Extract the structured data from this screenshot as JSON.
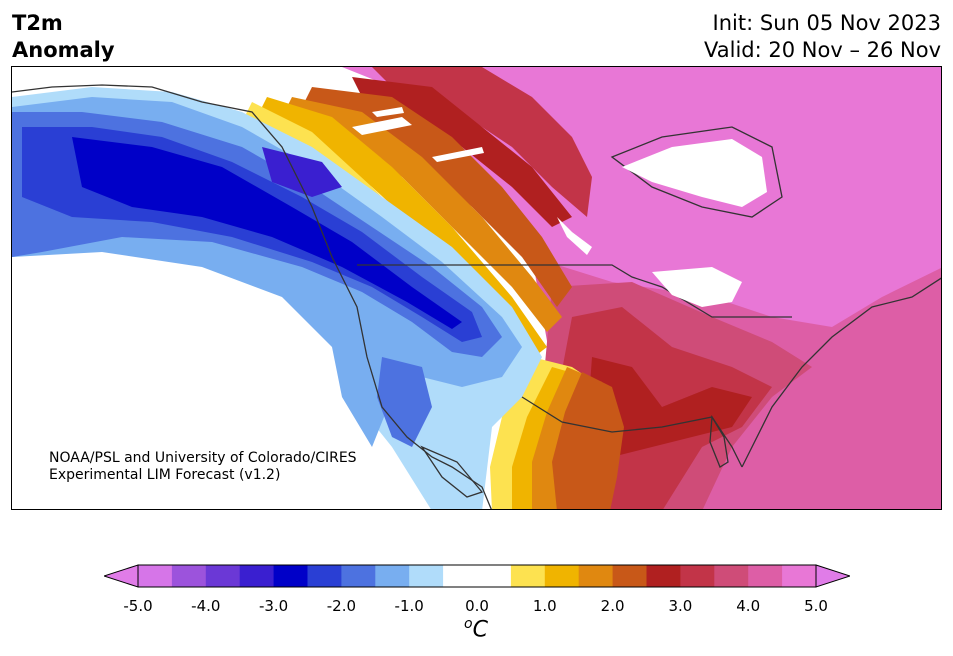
{
  "title": {
    "line1": "T2m",
    "line2": "Anomaly"
  },
  "header_right": {
    "init": "Init: Sun 05 Nov 2023",
    "valid": "Valid: 20 Nov – 26 Nov"
  },
  "credit": {
    "line1": "NOAA/PSL and University of Colorado/CIRES",
    "line2": "Experimental LIM Forecast (v1.2)"
  },
  "colorbar": {
    "ticks": [
      "-5.0",
      "-4.0",
      "-3.0",
      "-2.0",
      "-1.0",
      "0.0",
      "1.0",
      "2.0",
      "3.0",
      "4.0",
      "5.0"
    ],
    "unit_main": "C",
    "unit_sup": "o",
    "colors": [
      "#d675e8",
      "#9c53dc",
      "#6b38d6",
      "#3a1fd0",
      "#0000c8",
      "#2a3fd4",
      "#4d72e0",
      "#78aef0",
      "#b0dcfa",
      "#ffffff",
      "#ffffff",
      "#fde250",
      "#f0b400",
      "#e08810",
      "#c85818",
      "#b02020",
      "#c23448",
      "#cf4c78",
      "#dd5ea6",
      "#e877d6"
    ],
    "under_color": "#e07ce8",
    "over_color": "#e07ce8"
  },
  "map_colors": {
    "pos_strong": "#e877d6",
    "pos_4": "#dd5ea6",
    "pos_35": "#cf4c78",
    "pos_3": "#c23448",
    "pos_25": "#b02020",
    "pos_2": "#c85818",
    "pos_15": "#e08810",
    "pos_1": "#f0b400",
    "pos_05": "#fde250",
    "neg_05": "#b0dcfa",
    "neg_1": "#78aef0",
    "neg_15": "#4d72e0",
    "neg_2": "#2a3fd4",
    "neg_25": "#0000c8",
    "neg_3": "#3a1fd0",
    "border": "#333333"
  }
}
